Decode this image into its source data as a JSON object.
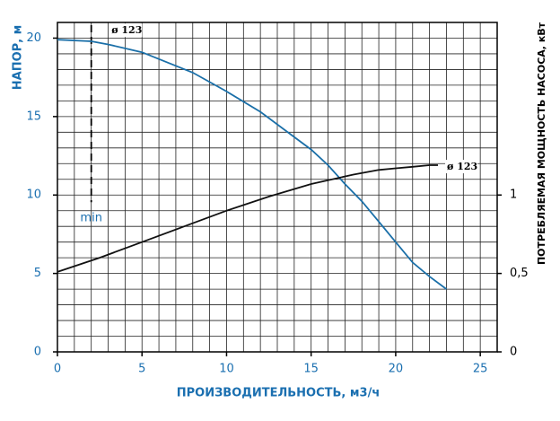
{
  "chart_data": {
    "type": "line",
    "x_label": "ПРОИЗВОДИТЕЛЬНОСТЬ, м3/ч",
    "y_label": "НАПОР, м",
    "y2_label": "ПОТРЕБЛЯЕМАЯ МОЩНОСТЬ НАСОСА, кВт",
    "xlim": [
      0,
      26
    ],
    "xticks": [
      0,
      5,
      10,
      15,
      20,
      25
    ],
    "ylim": [
      0,
      21
    ],
    "yticks": [
      0,
      5,
      10,
      15,
      20
    ],
    "y2lim": [
      0,
      2.1
    ],
    "y2ticks": [
      0,
      {
        "value": 0.5,
        "label": "0,5"
      },
      1
    ],
    "grid": true,
    "series": [
      {
        "name": "ø 123",
        "color": "#1a6fa8",
        "x": [
          0,
          2,
          3,
          5,
          8,
          10,
          12,
          14,
          15,
          16,
          17,
          18,
          19,
          20,
          21,
          22,
          23
        ],
        "values": [
          19.9,
          19.8,
          19.6,
          19.1,
          17.8,
          16.6,
          15.3,
          13.7,
          12.9,
          11.9,
          10.7,
          9.6,
          8.3,
          7.0,
          5.7,
          4.8,
          4.0
        ]
      },
      {
        "name": "ø 123",
        "color": "#111111",
        "axis": "y2",
        "x": [
          0,
          2.5,
          5,
          7.5,
          10,
          12.5,
          15,
          17.5,
          19,
          20,
          21,
          22,
          22.5
        ],
        "values": [
          0.51,
          0.6,
          0.7,
          0.8,
          0.9,
          0.99,
          1.07,
          1.13,
          1.16,
          1.17,
          1.18,
          1.19,
          1.19
        ]
      }
    ],
    "annotations": [
      {
        "label": "min",
        "x": 2
      }
    ]
  }
}
